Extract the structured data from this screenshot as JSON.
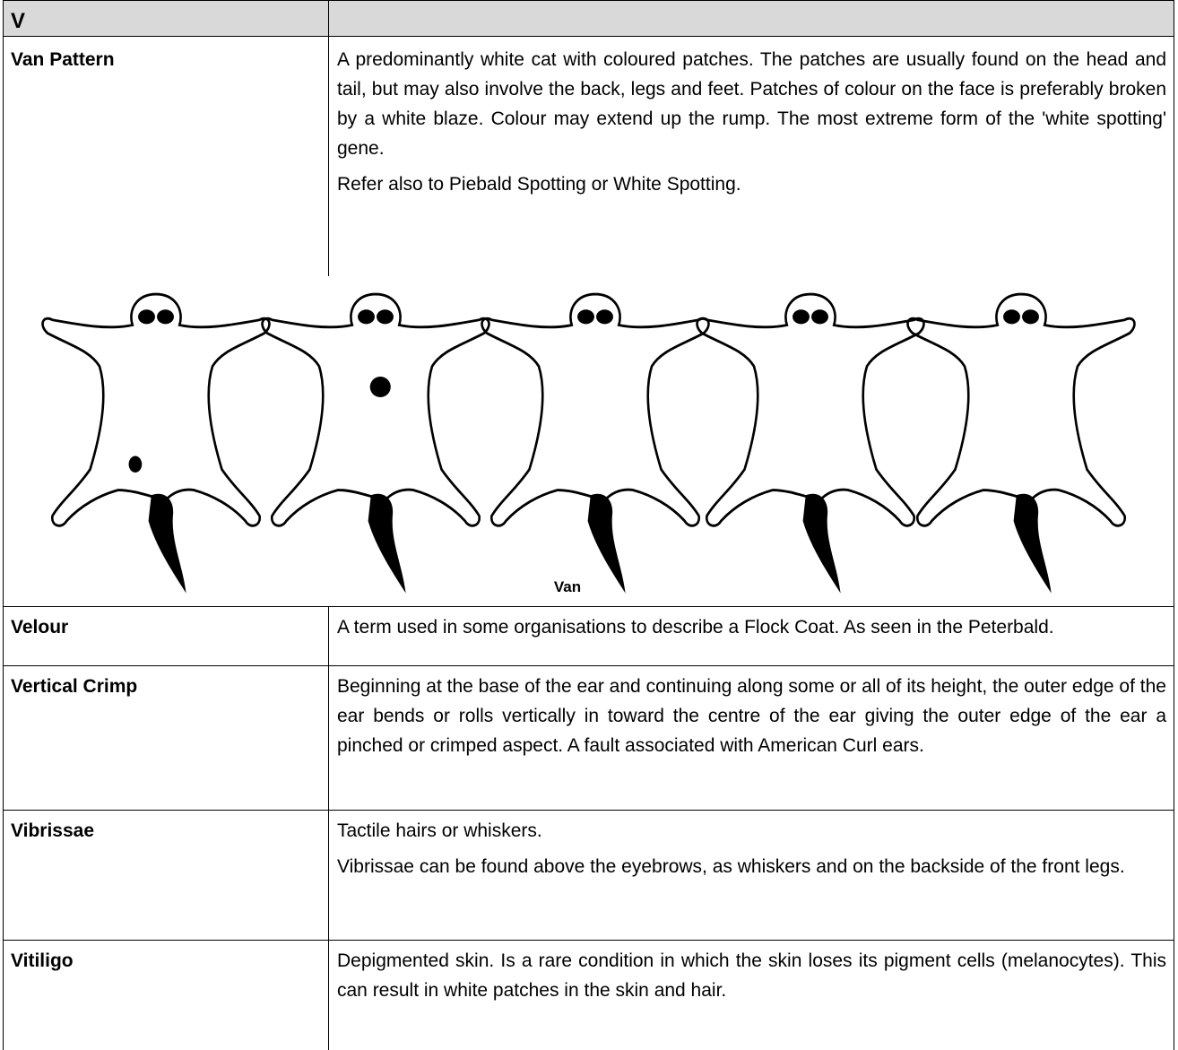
{
  "header": {
    "letter": "V"
  },
  "rows": [
    {
      "term": "Van Pattern",
      "paragraphs": [
        "A predominantly white cat with coloured patches. The patches are usually found on the head and tail, but may also involve the back, legs and feet. Patches of colour on the face is preferably broken by a white blaze. Colour may extend up the rump. The most extreme form of the 'white spotting' gene.",
        "Refer also to Piebald Spotting or White Spotting."
      ]
    },
    {
      "term": "Velour",
      "paragraphs": [
        "A term used in some organisations to describe a Flock Coat.  As seen in the Peterbald."
      ]
    },
    {
      "term": "Vertical Crimp",
      "paragraphs": [
        "Beginning at the base of the ear and continuing along some or all of its height, the outer edge of the ear bends or rolls vertically in toward the centre of the ear giving the outer edge of the ear a pinched or crimped aspect.  A fault associated with American Curl ears."
      ]
    },
    {
      "term": "Vibrissae",
      "paragraphs": [
        "Tactile hairs or whiskers.",
        "Vibrissae can be found above the eyebrows, as whiskers and on the backside of the front legs."
      ]
    },
    {
      "term": "Vitiligo",
      "paragraphs": [
        "Depigmented skin. Is a rare condition in which the skin loses its pigment cells (melanocytes).  This can result in white patches in the skin and hair."
      ]
    }
  ],
  "figure": {
    "caption": "Van"
  }
}
